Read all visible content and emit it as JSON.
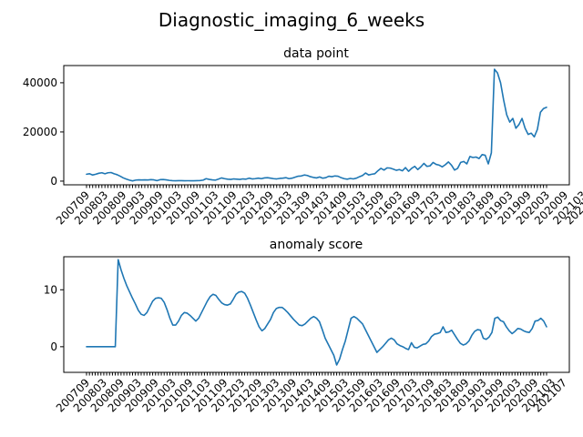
{
  "figure": {
    "title": "Diagnostic_imaging_6_weeks"
  },
  "colors": {
    "line": "#1f77b4",
    "axis": "#000000",
    "background": "#ffffff"
  },
  "chart_data": [
    {
      "type": "line",
      "title": "data point",
      "xlabel": "",
      "ylabel": "",
      "ylim": [
        -1500,
        47000
      ],
      "yticks": [
        0,
        20000,
        40000
      ],
      "ytick_labels": [
        "0",
        "20000",
        "40000"
      ],
      "grid": false,
      "x_tick_labels": [
        "200709",
        "200803",
        "200809",
        "200903",
        "200909",
        "201003",
        "201009",
        "201103",
        "201109",
        "201203",
        "201209",
        "201303",
        "201309",
        "201403",
        "201409",
        "201503",
        "201509",
        "201603",
        "201609",
        "201703",
        "201709",
        "201803",
        "201809",
        "201903",
        "201909",
        "202003",
        "202009",
        "202103",
        "202107"
      ],
      "x_tick_positions": [
        0,
        6,
        12,
        18,
        24,
        30,
        36,
        42,
        48,
        54,
        60,
        66,
        72,
        78,
        84,
        90,
        96,
        102,
        108,
        114,
        120,
        126,
        132,
        138,
        144,
        150,
        156,
        162,
        166
      ],
      "visible_tick_labels": [
        "200709",
        "200803",
        "200809",
        "200903",
        "200909",
        "201003",
        "201009",
        "201103",
        "201109",
        "201203",
        "201209",
        "201303",
        "201309",
        "201403",
        "201409",
        "201503",
        "201509",
        "201603",
        "201609",
        "201703",
        "201709",
        "201803",
        "201809",
        "201903",
        "201909",
        "202003",
        "202009",
        "202103",
        "202107"
      ],
      "series": [
        {
          "x_start_label": "200709",
          "values": [
            2800,
            3000,
            2500,
            2800,
            3200,
            3400,
            3000,
            3400,
            3500,
            3000,
            2600,
            2000,
            1300,
            800,
            400,
            100,
            400,
            500,
            450,
            500,
            480,
            600,
            500,
            200,
            600,
            650,
            500,
            300,
            200,
            150,
            200,
            180,
            160,
            170,
            160,
            150,
            200,
            250,
            400,
            1000,
            700,
            500,
            400,
            800,
            1300,
            1000,
            800,
            700,
            900,
            800,
            700,
            900,
            800,
            1200,
            900,
            1000,
            1200,
            1000,
            1300,
            1400,
            1200,
            1000,
            900,
            1100,
            1200,
            1400,
            1000,
            1200,
            1600,
            2000,
            2100,
            2500,
            2300,
            1800,
            1500,
            1300,
            1700,
            1200,
            1400,
            2000,
            1800,
            2100,
            2000,
            1400,
            1000,
            800,
            1100,
            900,
            1200,
            1800,
            2300,
            3300,
            2500,
            2800,
            3000,
            4200,
            5200,
            4500,
            5400,
            5300,
            4900,
            4400,
            4700,
            4200,
            5500,
            4000,
            5200,
            6000,
            4700,
            5800,
            7200,
            6000,
            6200,
            7600,
            6800,
            6500,
            5800,
            6700,
            7800,
            6500,
            4500,
            5200,
            7600,
            8000,
            7000,
            10000,
            9600,
            9800,
            9200,
            10800,
            10500,
            7000,
            11500,
            45500,
            44000,
            40000,
            33000,
            27000,
            24000,
            25500,
            21500,
            23000,
            25500,
            21500,
            19000,
            19500,
            18000,
            21000,
            28000,
            29500,
            30000
          ]
        }
      ]
    },
    {
      "type": "line",
      "title": "anomaly score",
      "xlabel": "",
      "ylabel": "",
      "ylim": [
        -4.5,
        15.8
      ],
      "yticks": [
        0,
        10
      ],
      "ytick_labels": [
        "0",
        "10"
      ],
      "grid": false,
      "visible_tick_labels": [
        "200709",
        "200803",
        "200809",
        "200903",
        "200909",
        "201003",
        "201009",
        "201103",
        "201109",
        "201203",
        "201209",
        "201303",
        "201309",
        "201403",
        "201409",
        "201503",
        "201509",
        "201603",
        "201609",
        "201703",
        "201709",
        "201803",
        "201809",
        "201903",
        "201909",
        "202003",
        "202009",
        "202103",
        "202107"
      ],
      "series": [
        {
          "x_start_label": "200709",
          "values": [
            0,
            0,
            0,
            0,
            0,
            0,
            0,
            0,
            0,
            0,
            0,
            15.3,
            13.5,
            12,
            10.7,
            9.6,
            8.5,
            7.5,
            6.4,
            5.7,
            5.5,
            6,
            7,
            8,
            8.5,
            8.6,
            8.5,
            7.8,
            6.5,
            5,
            3.8,
            3.8,
            4.5,
            5.5,
            6,
            5.9,
            5.5,
            5,
            4.5,
            5,
            6,
            7,
            8,
            8.8,
            9.2,
            9,
            8.3,
            7.7,
            7.4,
            7.3,
            7.5,
            8.3,
            9.2,
            9.6,
            9.7,
            9.4,
            8.5,
            7.3,
            6,
            4.7,
            3.5,
            2.8,
            3.2,
            4,
            4.8,
            6,
            6.7,
            6.9,
            6.9,
            6.5,
            6,
            5.4,
            4.8,
            4.3,
            3.8,
            3.7,
            4,
            4.5,
            5,
            5.3,
            5,
            4.4,
            3,
            1.5,
            0.5,
            -0.5,
            -1.5,
            -3.2,
            -2.2,
            -0.5,
            1,
            3,
            5,
            5.3,
            5,
            4.5,
            4,
            3,
            2,
            1,
            0,
            -1,
            -0.5,
            0,
            0.6,
            1.2,
            1.5,
            1.2,
            0.5,
            0.2,
            0,
            -0.3,
            -0.5,
            0.7,
            -0.1,
            -0.2,
            0.1,
            0.4,
            0.5,
            1,
            1.8,
            2.2,
            2.3,
            2.5,
            3.5,
            2.5,
            2.6,
            2.9,
            2.1,
            1.3,
            0.6,
            0.3,
            0.5,
            1,
            2,
            2.7,
            3,
            2.9,
            1.5,
            1.3,
            1.7,
            2.5,
            5,
            5.2,
            4.6,
            4.4,
            3.5,
            2.8,
            2.3,
            2.7,
            3.2,
            3.1,
            2.8,
            2.6,
            2.5,
            3.2,
            4.5,
            4.6,
            5,
            4.5,
            3.5
          ]
        }
      ]
    }
  ]
}
